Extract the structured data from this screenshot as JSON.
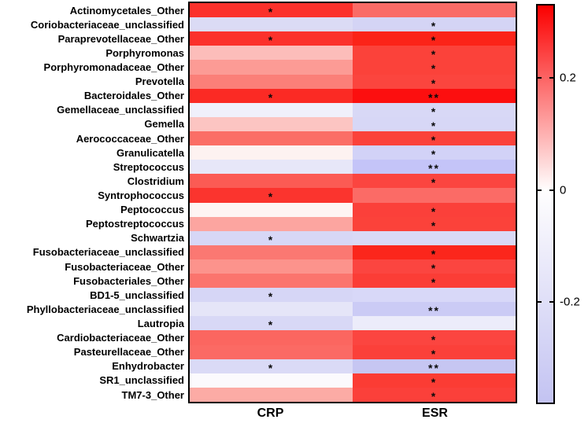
{
  "chart_data": {
    "type": "heatmap",
    "title": "",
    "columns": [
      "CRP",
      "ESR"
    ],
    "significance_note": "asterisks drawn inside cells",
    "rows": [
      {
        "label": "Actinomycetales_Other",
        "values": [
          0.28,
          0.19
        ],
        "colors": [
          "#fb312b",
          "#fa6b66"
        ],
        "sig": [
          "*",
          ""
        ]
      },
      {
        "label": "Coriobacteriaceae_unclassified",
        "values": [
          -0.09,
          -0.11
        ],
        "colors": [
          "#dbdbf5",
          "#d4d4f5"
        ],
        "sig": [
          "",
          "*"
        ]
      },
      {
        "label": "Paraprevotellaceae_Other",
        "values": [
          0.28,
          0.3
        ],
        "colors": [
          "#fb312b",
          "#fb2318"
        ],
        "sig": [
          "*",
          "*"
        ]
      },
      {
        "label": "Porphyromonas",
        "values": [
          0.08,
          0.26
        ],
        "colors": [
          "#fcbdba",
          "#fb423a"
        ],
        "sig": [
          "",
          "*"
        ]
      },
      {
        "label": "Porphyromonadaceae_Other",
        "values": [
          0.13,
          0.26
        ],
        "colors": [
          "#fc9b95",
          "#fb423a"
        ],
        "sig": [
          "",
          "*"
        ]
      },
      {
        "label": "Prevotella",
        "values": [
          0.17,
          0.25
        ],
        "colors": [
          "#fb7f78",
          "#fb453e"
        ],
        "sig": [
          "",
          "*"
        ]
      },
      {
        "label": "Bacteroidales_Other",
        "values": [
          0.29,
          0.32
        ],
        "colors": [
          "#fb2a24",
          "#fc0f0f"
        ],
        "sig": [
          "*",
          "**"
        ]
      },
      {
        "label": "Gemellaceae_unclassified",
        "values": [
          -0.03,
          -0.1
        ],
        "colors": [
          "#f0f0fb",
          "#d8d8f6"
        ],
        "sig": [
          "",
          "*"
        ]
      },
      {
        "label": "Gemella",
        "values": [
          0.07,
          -0.1
        ],
        "colors": [
          "#fcc5c2",
          "#d7d7f6"
        ],
        "sig": [
          "",
          "*"
        ]
      },
      {
        "label": "Aerococcaceae_Other",
        "values": [
          0.19,
          0.26
        ],
        "colors": [
          "#fb6e66",
          "#fb423a"
        ],
        "sig": [
          "",
          "*"
        ]
      },
      {
        "label": "Granulicatella",
        "values": [
          0.02,
          -0.12
        ],
        "colors": [
          "#fdf2f1",
          "#d2d2f7"
        ],
        "sig": [
          "",
          "*"
        ]
      },
      {
        "label": "Streptococcus",
        "values": [
          -0.06,
          -0.16
        ],
        "colors": [
          "#e7e7f8",
          "#c4c4f8"
        ],
        "sig": [
          "",
          "**"
        ]
      },
      {
        "label": "Clostridium",
        "values": [
          0.22,
          0.25
        ],
        "colors": [
          "#fb5b54",
          "#fb4540"
        ],
        "sig": [
          "",
          "*"
        ]
      },
      {
        "label": "Syntrophococcus",
        "values": [
          0.28,
          0.19
        ],
        "colors": [
          "#fb342e",
          "#fb6b66"
        ],
        "sig": [
          "*",
          ""
        ]
      },
      {
        "label": "Peptococcus",
        "values": [
          0.01,
          0.26
        ],
        "colors": [
          "#fef4f3",
          "#fb403a"
        ],
        "sig": [
          "",
          "*"
        ]
      },
      {
        "label": "Peptostreptococcus",
        "values": [
          0.12,
          0.26
        ],
        "colors": [
          "#fca5a0",
          "#fb423a"
        ],
        "sig": [
          "",
          "*"
        ]
      },
      {
        "label": "Schwartzia",
        "values": [
          -0.1,
          -0.1
        ],
        "colors": [
          "#d7d7f6",
          "#d9d9f6"
        ],
        "sig": [
          "*",
          ""
        ]
      },
      {
        "label": "Fusobacteriaceae_unclassified",
        "values": [
          0.18,
          0.3
        ],
        "colors": [
          "#fb7872",
          "#fb261c"
        ],
        "sig": [
          "",
          "*"
        ]
      },
      {
        "label": "Fusobacteriaceae_Other",
        "values": [
          0.14,
          0.25
        ],
        "colors": [
          "#fc938c",
          "#fb4540"
        ],
        "sig": [
          "",
          "*"
        ]
      },
      {
        "label": "Fusobacteriales_Other",
        "values": [
          0.18,
          0.27
        ],
        "colors": [
          "#fb746d",
          "#fb3d36"
        ],
        "sig": [
          "",
          "*"
        ]
      },
      {
        "label": "BD1-5_unclassified",
        "values": [
          -0.11,
          -0.1
        ],
        "colors": [
          "#d6d6f6",
          "#d8d8f8"
        ],
        "sig": [
          "*",
          ""
        ]
      },
      {
        "label": "Phyllobacteriaceae_unclassified",
        "values": [
          -0.07,
          -0.14
        ],
        "colors": [
          "#e5e5f8",
          "#cbcbf5"
        ],
        "sig": [
          "",
          "**"
        ]
      },
      {
        "label": "Lautropia",
        "values": [
          -0.1,
          -0.05
        ],
        "colors": [
          "#d8d8f6",
          "#ececfa"
        ],
        "sig": [
          "*",
          ""
        ]
      },
      {
        "label": "Cardiobacteriaceae_Other",
        "values": [
          0.2,
          0.25
        ],
        "colors": [
          "#fb6660",
          "#fb4540"
        ],
        "sig": [
          "",
          "*"
        ]
      },
      {
        "label": "Pasteurellaceae_Other",
        "values": [
          0.2,
          0.26
        ],
        "colors": [
          "#fb6a64",
          "#fb403a"
        ],
        "sig": [
          "",
          "*"
        ]
      },
      {
        "label": "Enhydrobacter",
        "values": [
          -0.1,
          -0.15
        ],
        "colors": [
          "#dadaf6",
          "#c6c6f2"
        ],
        "sig": [
          "*",
          "**"
        ]
      },
      {
        "label": "SR1_unclassified",
        "values": [
          0.0,
          0.26
        ],
        "colors": [
          "#fbfafd",
          "#fb3c34"
        ],
        "sig": [
          "",
          "*"
        ]
      },
      {
        "label": "TM7-3_Other",
        "values": [
          0.11,
          0.26
        ],
        "colors": [
          "#fcaba5",
          "#fb403a"
        ],
        "sig": [
          "",
          "*"
        ]
      }
    ],
    "colorbar": {
      "tick_labels": [
        "0.2",
        "0",
        "-0.2"
      ],
      "tick_values": [
        0.2,
        0,
        -0.2
      ],
      "vmax": 0.33,
      "vmin": -0.38,
      "top_color": "#fb0000",
      "mid_color": "#fffefe",
      "bottom_color": "#c3c3f2"
    },
    "layout_hints": {
      "grid": "off",
      "legend_position": "right-colorbar",
      "cell_border": "none"
    }
  }
}
